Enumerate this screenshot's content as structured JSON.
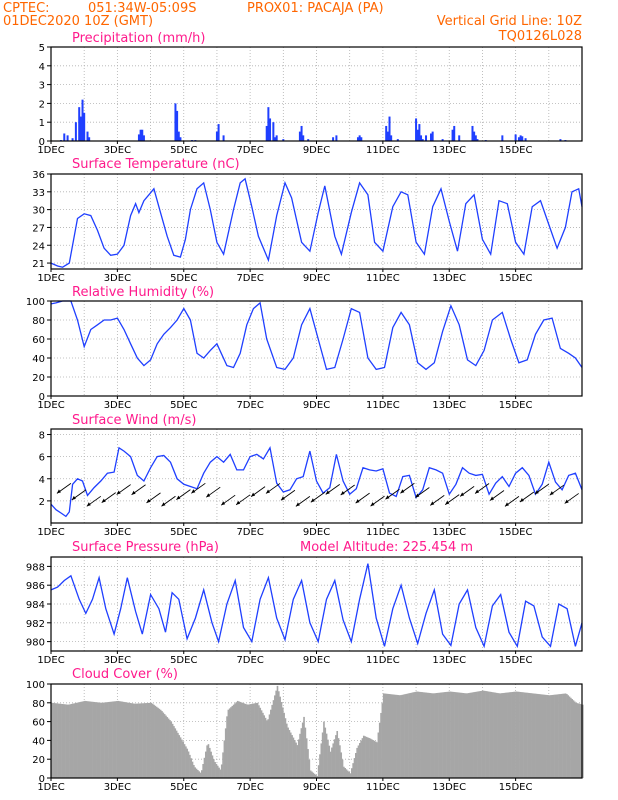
{
  "header": {
    "line1_left": "CPTEC:",
    "coords": "051:34W-05:09S",
    "station": "PROX01: PACAJA (PA)",
    "date": "01DEC2020 10Z (GMT)",
    "grid_note": "Vertical Grid Line: 10Z",
    "code": "TQ0126L028"
  },
  "colors": {
    "header": "#ff6600",
    "title": "#ff1a8c",
    "series": "#1f3fff",
    "cloud": "#a6a6a6"
  },
  "chart_data": [
    {
      "type": "bar",
      "title": "Precipitation (mm/h)",
      "x_tick_labels": [
        "1DEC",
        "3DEC",
        "5DEC",
        "7DEC",
        "9DEC",
        "11DEC",
        "13DEC",
        "15DEC"
      ],
      "ylim": [
        0,
        5
      ],
      "y_ticks": [
        0,
        1,
        2,
        3,
        4,
        5
      ],
      "grid": true,
      "x_unit": "day offset from 01DEC2020 10Z",
      "x": [
        0.3,
        0.4,
        0.5,
        0.65,
        0.75,
        0.85,
        0.9,
        0.95,
        1.0,
        1.1,
        1.15,
        2.65,
        2.7,
        2.75,
        2.8,
        3.75,
        3.8,
        3.85,
        3.9,
        4.25,
        4.35,
        5.0,
        5.05,
        5.2,
        6.5,
        6.55,
        6.6,
        6.7,
        6.75,
        6.8,
        7.0,
        7.5,
        7.55,
        7.6,
        7.75,
        8.5,
        8.6,
        9.25,
        9.3,
        9.35,
        10.1,
        10.15,
        10.2,
        10.25,
        10.45,
        11.0,
        11.05,
        11.1,
        11.15,
        11.2,
        11.3,
        11.45,
        11.5,
        11.8,
        12.1,
        12.15,
        12.3,
        12.7,
        12.75,
        12.8,
        12.85,
        13.1,
        13.6,
        14.0,
        14.1,
        14.15,
        14.2,
        14.3,
        15.35,
        15.5
      ],
      "values": [
        0.05,
        0.4,
        0.3,
        0.15,
        1.0,
        1.8,
        1.3,
        2.2,
        1.5,
        0.5,
        0.2,
        0.35,
        0.6,
        0.6,
        0.3,
        2.0,
        1.6,
        0.5,
        0.2,
        0.05,
        0.05,
        0.5,
        0.9,
        0.3,
        0.8,
        1.8,
        1.2,
        1.0,
        0.2,
        0.3,
        0.1,
        0.5,
        0.8,
        0.3,
        0.1,
        0.2,
        0.3,
        0.2,
        0.3,
        0.2,
        0.8,
        0.5,
        1.3,
        0.3,
        0.1,
        1.2,
        0.6,
        0.9,
        0.3,
        0.1,
        0.3,
        0.4,
        0.5,
        0.1,
        0.6,
        0.8,
        0.3,
        0.8,
        0.5,
        0.3,
        0.1,
        0.05,
        0.3,
        0.35,
        0.2,
        0.3,
        0.25,
        0.15,
        0.1,
        0.05
      ]
    },
    {
      "type": "line",
      "title": "Surface Temperature (nC)",
      "x_tick_labels": [
        "1DEC",
        "3DEC",
        "5DEC",
        "7DEC",
        "9DEC",
        "11DEC",
        "13DEC",
        "15DEC"
      ],
      "ylim": [
        20,
        36
      ],
      "y_ticks": [
        21,
        24,
        27,
        30,
        33,
        36
      ],
      "grid": true,
      "x_unit": "day offset from 01DEC2020 10Z",
      "x": [
        0,
        0.2,
        0.35,
        0.55,
        0.8,
        1.0,
        1.2,
        1.4,
        1.6,
        1.8,
        2.0,
        2.2,
        2.4,
        2.55,
        2.65,
        2.8,
        2.95,
        3.1,
        3.3,
        3.5,
        3.7,
        3.9,
        4.05,
        4.2,
        4.4,
        4.6,
        4.8,
        5.0,
        5.2,
        5.5,
        5.7,
        5.85,
        6.05,
        6.25,
        6.55,
        6.8,
        7.05,
        7.25,
        7.55,
        7.8,
        8.05,
        8.25,
        8.55,
        8.75,
        9.05,
        9.3,
        9.55,
        9.75,
        10.0,
        10.3,
        10.55,
        10.75,
        11.0,
        11.25,
        11.5,
        11.75,
        12.0,
        12.25,
        12.5,
        12.75,
        13.0,
        13.25,
        13.5,
        13.75,
        14.0,
        14.25,
        14.5,
        14.75,
        15.0,
        15.25,
        15.5,
        15.7,
        15.9,
        16.0
      ],
      "values": [
        21.0,
        20.5,
        20.3,
        21.0,
        28.5,
        29.3,
        29.0,
        26.5,
        23.5,
        22.3,
        22.5,
        24.0,
        29.0,
        31.0,
        29.5,
        31.5,
        32.5,
        33.5,
        29.5,
        25.5,
        22.3,
        22.0,
        25.0,
        30.0,
        33.5,
        34.5,
        30.0,
        24.5,
        22.5,
        30.0,
        34.5,
        35.2,
        30.5,
        25.5,
        21.5,
        29.0,
        34.5,
        32.0,
        24.5,
        23.0,
        29.5,
        34.0,
        25.5,
        22.5,
        29.5,
        34.5,
        32.5,
        24.5,
        23.0,
        30.5,
        33.0,
        32.5,
        24.5,
        22.5,
        30.5,
        33.5,
        28.0,
        23.0,
        31.0,
        32.5,
        25.0,
        22.5,
        31.5,
        31.0,
        24.5,
        22.5,
        30.5,
        31.5,
        27.5,
        23.5,
        27.0,
        33.0,
        33.5,
        30.5
      ]
    },
    {
      "type": "line",
      "title": "Relative Humidity (%)",
      "x_tick_labels": [
        "1DEC",
        "3DEC",
        "5DEC",
        "7DEC",
        "9DEC",
        "11DEC",
        "13DEC",
        "15DEC"
      ],
      "ylim": [
        0,
        100
      ],
      "y_ticks": [
        0,
        20,
        40,
        60,
        80,
        100
      ],
      "grid": true,
      "x_unit": "day offset from 01DEC2020 10Z",
      "x": [
        0,
        0.15,
        0.35,
        0.6,
        0.8,
        1.0,
        1.2,
        1.4,
        1.6,
        1.8,
        2.0,
        2.2,
        2.4,
        2.6,
        2.8,
        3.0,
        3.2,
        3.4,
        3.6,
        3.8,
        4.0,
        4.2,
        4.4,
        4.6,
        4.8,
        5.0,
        5.3,
        5.5,
        5.7,
        5.9,
        6.1,
        6.3,
        6.5,
        6.8,
        7.05,
        7.3,
        7.55,
        7.8,
        8.05,
        8.3,
        8.55,
        8.8,
        9.05,
        9.3,
        9.55,
        9.8,
        10.05,
        10.3,
        10.55,
        10.8,
        11.05,
        11.3,
        11.55,
        11.8,
        12.05,
        12.3,
        12.55,
        12.8,
        13.05,
        13.3,
        13.6,
        13.85,
        14.1,
        14.35,
        14.6,
        14.85,
        15.1,
        15.35,
        15.6,
        15.8,
        16.0
      ],
      "values": [
        97,
        98,
        100,
        100,
        80,
        52,
        70,
        75,
        80,
        80,
        82,
        70,
        55,
        40,
        32,
        38,
        55,
        65,
        72,
        80,
        92,
        80,
        45,
        40,
        48,
        55,
        32,
        30,
        45,
        75,
        92,
        98,
        60,
        30,
        28,
        40,
        75,
        92,
        60,
        28,
        30,
        60,
        92,
        88,
        40,
        28,
        30,
        72,
        88,
        75,
        35,
        28,
        35,
        68,
        95,
        75,
        38,
        32,
        48,
        80,
        88,
        60,
        35,
        38,
        65,
        80,
        82,
        50,
        45,
        40,
        30
      ]
    },
    {
      "type": "line",
      "title": "Surface Wind (m/s)",
      "x_tick_labels": [
        "1DEC",
        "3DEC",
        "5DEC",
        "7DEC",
        "9DEC",
        "11DEC",
        "13DEC",
        "15DEC"
      ],
      "ylim": [
        0,
        8.5
      ],
      "y_ticks": [
        2,
        4,
        6,
        8
      ],
      "grid": true,
      "x_unit": "day offset from 01DEC2020 10Z",
      "x": [
        0,
        0.15,
        0.3,
        0.45,
        0.55,
        0.65,
        0.8,
        0.95,
        1.1,
        1.3,
        1.5,
        1.7,
        1.9,
        2.05,
        2.2,
        2.4,
        2.6,
        2.8,
        3.0,
        3.2,
        3.4,
        3.6,
        3.8,
        4.0,
        4.2,
        4.4,
        4.6,
        4.8,
        5.0,
        5.2,
        5.4,
        5.6,
        5.8,
        6.0,
        6.2,
        6.4,
        6.6,
        6.8,
        7.0,
        7.2,
        7.4,
        7.6,
        7.8,
        8.0,
        8.2,
        8.4,
        8.6,
        8.8,
        9.0,
        9.2,
        9.4,
        9.6,
        9.8,
        10.0,
        10.2,
        10.4,
        10.6,
        10.8,
        11.0,
        11.2,
        11.4,
        11.6,
        11.8,
        12.0,
        12.2,
        12.4,
        12.6,
        12.8,
        13.0,
        13.2,
        13.4,
        13.6,
        13.8,
        14.0,
        14.2,
        14.4,
        14.6,
        14.8,
        15.0,
        15.2,
        15.4,
        15.6,
        15.8,
        16.0
      ],
      "values": [
        1.7,
        1.2,
        0.9,
        0.6,
        1.0,
        3.5,
        4.0,
        3.8,
        2.5,
        3.2,
        3.8,
        4.5,
        4.6,
        6.8,
        6.5,
        6.0,
        4.3,
        3.8,
        5.0,
        6.0,
        6.1,
        5.5,
        4.0,
        3.5,
        3.3,
        3.1,
        4.5,
        5.5,
        6.0,
        5.5,
        6.2,
        4.8,
        4.8,
        6.0,
        6.2,
        5.8,
        6.8,
        3.6,
        2.8,
        3.0,
        4.0,
        4.2,
        6.5,
        3.8,
        2.7,
        3.2,
        6.2,
        3.8,
        2.6,
        3.1,
        5.0,
        4.8,
        4.7,
        4.9,
        2.7,
        2.4,
        4.2,
        4.3,
        2.3,
        3.0,
        5.0,
        4.8,
        4.5,
        2.6,
        3.5,
        5.0,
        4.5,
        4.3,
        4.4,
        2.6,
        3.6,
        4.2,
        3.3,
        4.5,
        5.0,
        4.3,
        2.6,
        3.5,
        5.5,
        3.7,
        3.0,
        4.3,
        4.5,
        3.0
      ]
    },
    {
      "type": "line",
      "title": "Surface Pressure (hPa)",
      "note": "Model Altitude: 225.454  m",
      "x_tick_labels": [
        "1DEC",
        "3DEC",
        "5DEC",
        "7DEC",
        "9DEC",
        "11DEC",
        "13DEC",
        "15DEC"
      ],
      "ylim": [
        979,
        989
      ],
      "y_ticks": [
        980,
        982,
        984,
        986,
        988
      ],
      "grid": true,
      "x_unit": "day offset from 01DEC2020 10Z",
      "x": [
        0,
        0.2,
        0.4,
        0.6,
        0.85,
        1.05,
        1.25,
        1.45,
        1.65,
        1.9,
        2.1,
        2.3,
        2.55,
        2.75,
        3.0,
        3.25,
        3.45,
        3.65,
        3.85,
        4.1,
        4.35,
        4.6,
        4.85,
        5.05,
        5.3,
        5.55,
        5.8,
        6.05,
        6.3,
        6.55,
        6.8,
        7.05,
        7.3,
        7.55,
        7.8,
        8.05,
        8.3,
        8.55,
        8.8,
        9.05,
        9.3,
        9.55,
        9.8,
        10.05,
        10.3,
        10.55,
        10.8,
        11.05,
        11.3,
        11.55,
        11.8,
        12.05,
        12.3,
        12.55,
        12.8,
        13.05,
        13.3,
        13.55,
        13.8,
        14.05,
        14.3,
        14.55,
        14.8,
        15.05,
        15.3,
        15.55,
        15.8,
        16.0
      ],
      "values": [
        985.5,
        985.8,
        986.5,
        987.0,
        984.5,
        983.0,
        984.5,
        986.8,
        983.5,
        980.8,
        983.5,
        986.8,
        983.2,
        980.8,
        985.0,
        983.5,
        981.0,
        985.2,
        984.5,
        980.3,
        982.5,
        985.5,
        982.0,
        980.0,
        984.0,
        986.5,
        981.5,
        980.0,
        984.5,
        986.8,
        982.5,
        980.2,
        984.5,
        986.5,
        982.0,
        980.0,
        984.5,
        986.5,
        982.3,
        980.0,
        984.5,
        988.3,
        982.5,
        979.5,
        983.5,
        986.0,
        982.5,
        979.8,
        983.0,
        985.5,
        980.8,
        979.6,
        984.0,
        985.5,
        981.5,
        979.5,
        983.8,
        985.0,
        981.0,
        979.5,
        984.3,
        983.8,
        980.5,
        979.5,
        984.0,
        983.5,
        979.5,
        982.0
      ]
    },
    {
      "type": "area",
      "title": "Cloud Cover (%)",
      "x_tick_labels": [
        "1DEC",
        "3DEC",
        "5DEC",
        "7DEC",
        "9DEC",
        "11DEC",
        "13DEC",
        "15DEC"
      ],
      "ylim": [
        0,
        100
      ],
      "y_ticks": [
        0,
        20,
        40,
        60,
        80,
        100
      ],
      "grid": true,
      "x_unit": "day offset from 01DEC2020 10Z",
      "x": [
        0,
        0.5,
        1.0,
        1.5,
        2.0,
        2.5,
        3.0,
        3.3,
        3.6,
        3.9,
        4.1,
        4.3,
        4.5,
        4.7,
        4.9,
        5.1,
        5.3,
        5.6,
        5.9,
        6.2,
        6.5,
        6.8,
        7.1,
        7.4,
        7.6,
        7.8,
        8.0,
        8.2,
        8.4,
        8.6,
        8.8,
        9.0,
        9.2,
        9.4,
        9.6,
        9.8,
        10.0,
        10.5,
        11.0,
        11.5,
        12.0,
        12.5,
        13.0,
        13.5,
        14.0,
        14.5,
        15.0,
        15.5,
        15.8,
        16.0
      ],
      "values": [
        80,
        78,
        82,
        80,
        82,
        79,
        80,
        72,
        60,
        42,
        30,
        12,
        5,
        38,
        18,
        8,
        72,
        82,
        78,
        80,
        60,
        98,
        55,
        35,
        65,
        8,
        2,
        60,
        28,
        50,
        12,
        5,
        32,
        45,
        42,
        38,
        90,
        88,
        92,
        90,
        92,
        90,
        93,
        90,
        92,
        90,
        88,
        90,
        80,
        78
      ]
    }
  ]
}
